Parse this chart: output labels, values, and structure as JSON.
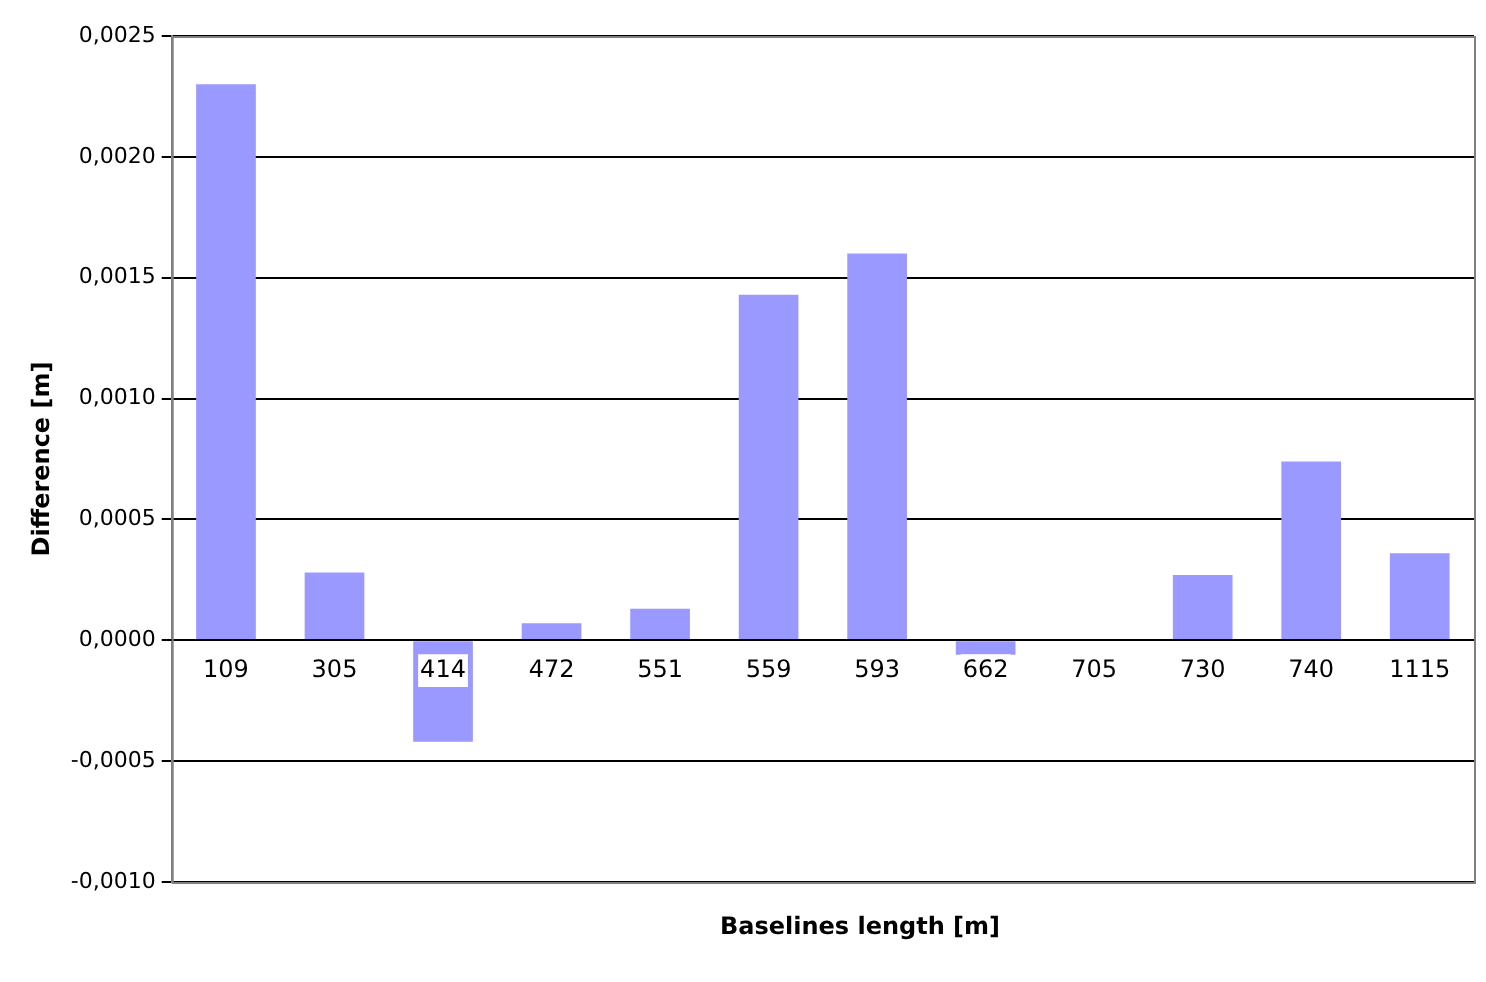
{
  "chart_data": {
    "type": "bar",
    "xlabel": "Baselines length [m]",
    "ylabel": "Difference [m]",
    "categories": [
      "109",
      "305",
      "414",
      "472",
      "551",
      "559",
      "593",
      "662",
      "705",
      "730",
      "740",
      "1115"
    ],
    "values": [
      0.0023,
      0.00028,
      -0.00042,
      7e-05,
      0.00013,
      0.00143,
      0.0016,
      -6e-05,
      0,
      0.00027,
      0.00074,
      0.00036
    ],
    "color": "#9999ff",
    "ylim": [
      -0.001,
      0.0025
    ],
    "yticks": [
      {
        "value": -0.001,
        "label": "-0,0010"
      },
      {
        "value": -0.0005,
        "label": "-0,0005"
      },
      {
        "value": 0,
        "label": "0,0000"
      },
      {
        "value": 0.0005,
        "label": "0,0005"
      },
      {
        "value": 0.001,
        "label": "0,0010"
      },
      {
        "value": 0.0015,
        "label": "0,0015"
      },
      {
        "value": 0.002,
        "label": "0,0020"
      },
      {
        "value": 0.0025,
        "label": "0,0025"
      }
    ],
    "grid": "y",
    "legend": false
  }
}
